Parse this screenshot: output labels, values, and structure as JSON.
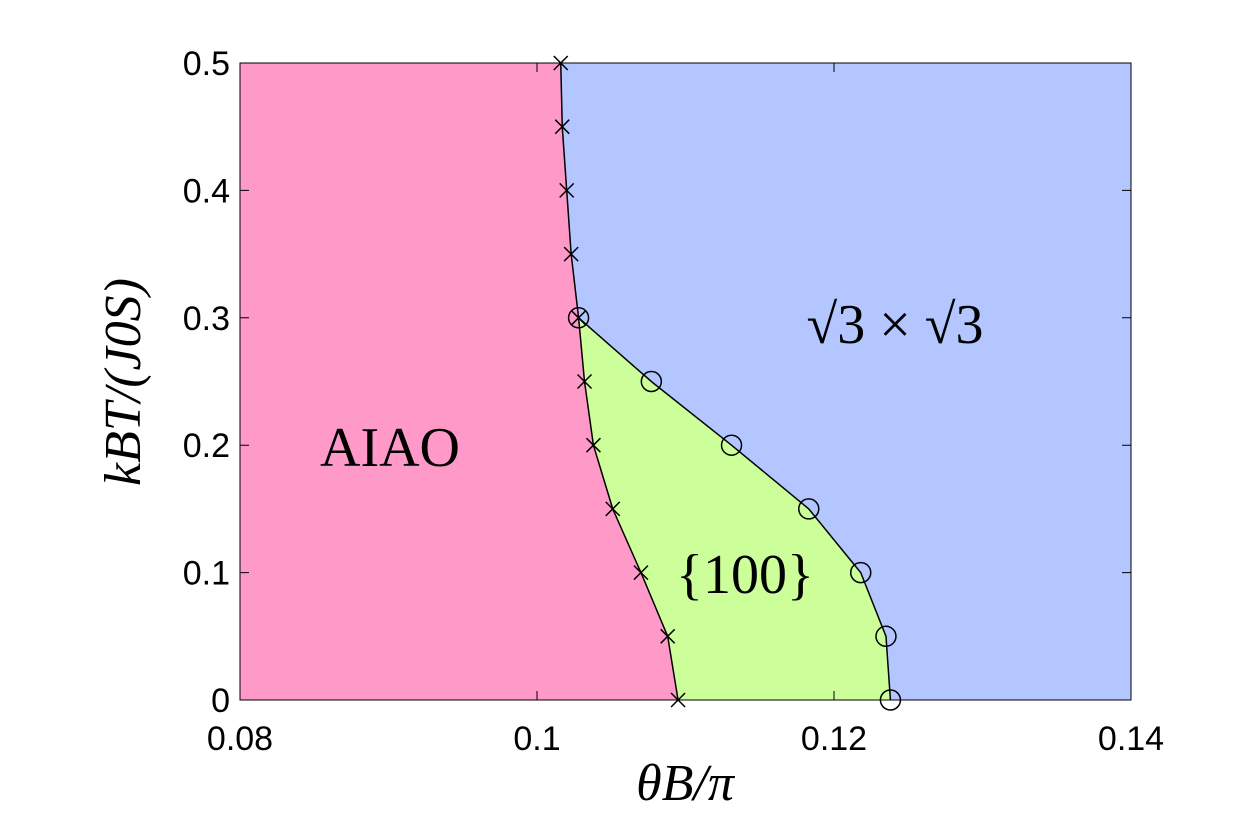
{
  "chart_data": {
    "type": "phase-diagram",
    "xlabel": "θB/π",
    "ylabel": "kBT/(J0S)",
    "xlim": [
      0.08,
      0.14
    ],
    "ylim": [
      0,
      0.5
    ],
    "xticks": [
      0.08,
      0.1,
      0.12,
      0.14
    ],
    "yticks": [
      0,
      0.1,
      0.2,
      0.3,
      0.4,
      0.5
    ],
    "series": [
      {
        "marker": "x",
        "color": "#000000",
        "x": [
          0.1016,
          0.1017,
          0.102,
          0.1023,
          0.1028,
          0.1032,
          0.1038,
          0.1051,
          0.107,
          0.1088,
          0.1095
        ],
        "values": [
          0.5,
          0.45,
          0.4,
          0.35,
          0.3,
          0.25,
          0.2,
          0.15,
          0.1,
          0.05,
          0
        ]
      },
      {
        "marker": "o",
        "color": "#000000",
        "x": [
          0.1028,
          0.1077,
          0.1131,
          0.1183,
          0.1218,
          0.1235,
          0.1238
        ],
        "values": [
          0.3,
          0.25,
          0.2,
          0.15,
          0.1,
          0.05,
          0
        ]
      }
    ],
    "regions": [
      {
        "label": "AIAO",
        "color": "#ff99c8"
      },
      {
        "label": "{100}",
        "color": "#ccff99"
      },
      {
        "label": "√3 × √3",
        "color": "#b3c6ff"
      }
    ]
  }
}
